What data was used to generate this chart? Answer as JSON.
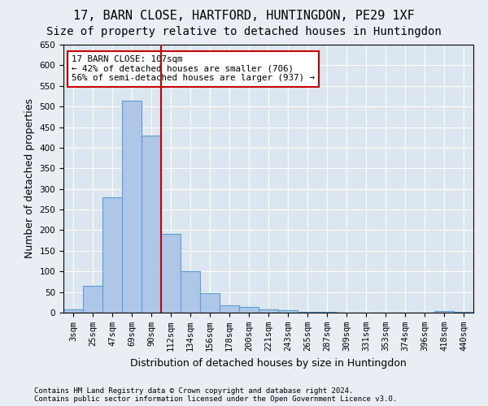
{
  "title": "17, BARN CLOSE, HARTFORD, HUNTINGDON, PE29 1XF",
  "subtitle": "Size of property relative to detached houses in Huntingdon",
  "xlabel": "Distribution of detached houses by size in Huntingdon",
  "ylabel": "Number of detached properties",
  "footnote1": "Contains HM Land Registry data © Crown copyright and database right 2024.",
  "footnote2": "Contains public sector information licensed under the Open Government Licence v3.0.",
  "categories": [
    "3sqm",
    "25sqm",
    "47sqm",
    "69sqm",
    "90sqm",
    "112sqm",
    "134sqm",
    "156sqm",
    "178sqm",
    "200sqm",
    "221sqm",
    "243sqm",
    "265sqm",
    "287sqm",
    "309sqm",
    "331sqm",
    "353sqm",
    "374sqm",
    "396sqm",
    "418sqm",
    "440sqm"
  ],
  "values": [
    8,
    65,
    280,
    515,
    430,
    192,
    100,
    47,
    17,
    13,
    8,
    5,
    2,
    1,
    0,
    0,
    0,
    0,
    0,
    3,
    1
  ],
  "bar_color": "#aec6e8",
  "bar_edge_color": "#5a9fd4",
  "vline_x": 4.5,
  "vline_color": "#cc0000",
  "annotation_text": "17 BARN CLOSE: 107sqm\n← 42% of detached houses are smaller (706)\n56% of semi-detached houses are larger (937) →",
  "annotation_box_color": "#ffffff",
  "annotation_box_edge": "#cc0000",
  "ylim": [
    0,
    650
  ],
  "yticks": [
    0,
    50,
    100,
    150,
    200,
    250,
    300,
    350,
    400,
    450,
    500,
    550,
    600,
    650
  ],
  "bg_color": "#e8eef4",
  "plot_bg_color": "#dce6f0",
  "grid_color": "#ffffff",
  "title_fontsize": 11,
  "subtitle_fontsize": 10,
  "label_fontsize": 9,
  "tick_fontsize": 7.5
}
